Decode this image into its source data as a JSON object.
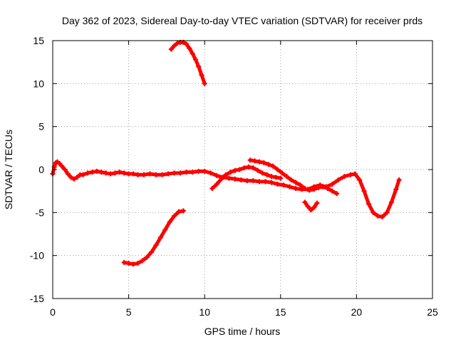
{
  "chart_data": {
    "type": "scatter",
    "title": "Day 362 of 2023, Sidereal Day-to-day VTEC variation (SDTVAR) for receiver prds",
    "xlabel": "GPS time / hours",
    "ylabel": "SDTVAR / TECUs",
    "xlim": [
      0,
      25
    ],
    "ylim": [
      -15,
      15
    ],
    "xticks": [
      0,
      5,
      10,
      15,
      20,
      25
    ],
    "yticks": [
      -15,
      -10,
      -5,
      0,
      5,
      10,
      15
    ],
    "grid": true,
    "marker": "+",
    "color": "#ff0000",
    "series": [
      {
        "name": "main-track",
        "x": [
          0.0,
          0.1,
          0.2,
          0.3,
          0.45,
          0.6,
          0.8,
          1.0,
          1.2,
          1.4,
          1.6,
          1.8,
          2.0,
          2.3,
          2.6,
          2.9,
          3.2,
          3.5,
          3.8,
          4.1,
          4.4,
          4.7,
          5.0,
          5.3,
          5.6,
          6.0,
          6.4,
          6.8,
          7.2,
          7.6,
          8.0,
          8.4,
          8.8,
          9.2,
          9.6,
          10.0,
          10.4,
          10.8,
          11.2,
          11.6,
          12.0,
          12.4,
          12.8,
          13.2,
          13.6,
          14.0,
          14.4,
          14.8,
          15.2,
          15.6,
          16.0,
          16.4,
          16.8,
          17.2,
          17.6,
          18.0,
          18.4,
          18.8,
          19.2,
          19.6,
          19.9,
          20.2,
          20.5,
          20.8,
          21.1,
          21.4,
          21.7,
          22.0,
          22.3,
          22.6,
          22.8
        ],
        "y": [
          -0.5,
          0.3,
          0.8,
          0.9,
          0.7,
          0.4,
          0.0,
          -0.5,
          -0.9,
          -1.1,
          -0.9,
          -0.6,
          -0.6,
          -0.4,
          -0.3,
          -0.2,
          -0.3,
          -0.4,
          -0.5,
          -0.4,
          -0.3,
          -0.4,
          -0.5,
          -0.5,
          -0.6,
          -0.6,
          -0.5,
          -0.6,
          -0.6,
          -0.5,
          -0.4,
          -0.4,
          -0.3,
          -0.3,
          -0.2,
          -0.2,
          -0.4,
          -0.7,
          -0.9,
          -1.0,
          -1.1,
          -1.2,
          -1.3,
          -1.3,
          -1.4,
          -1.4,
          -1.5,
          -1.7,
          -1.8,
          -2.0,
          -2.2,
          -2.3,
          -2.3,
          -2.0,
          -1.8,
          -2.0,
          -1.7,
          -1.2,
          -0.8,
          -0.6,
          -0.5,
          -1.2,
          -2.5,
          -4.0,
          -5.0,
          -5.4,
          -5.5,
          -5.0,
          -3.8,
          -2.3,
          -1.2
        ]
      },
      {
        "name": "upper-arc",
        "x": [
          7.8,
          8.0,
          8.2,
          8.4,
          8.6,
          8.8,
          9.0,
          9.2,
          9.4,
          9.6,
          9.8,
          10.0
        ],
        "y": [
          14.0,
          14.4,
          14.7,
          14.8,
          14.8,
          14.6,
          14.1,
          13.5,
          12.8,
          12.0,
          11.0,
          10.0
        ]
      },
      {
        "name": "lower-arc",
        "x": [
          4.7,
          5.0,
          5.3,
          5.6,
          5.9,
          6.2,
          6.5,
          6.8,
          7.1,
          7.4,
          7.7,
          8.0,
          8.3,
          8.6
        ],
        "y": [
          -10.8,
          -10.9,
          -11.0,
          -10.9,
          -10.6,
          -10.2,
          -9.6,
          -8.8,
          -7.9,
          -7.0,
          -6.1,
          -5.4,
          -4.9,
          -4.8
        ]
      },
      {
        "name": "secondary-track",
        "x": [
          10.5,
          10.8,
          11.1,
          11.4,
          11.7,
          12.0,
          12.3,
          12.6,
          12.9,
          13.2,
          13.5,
          13.8,
          14.1,
          14.4,
          14.7,
          15.0
        ],
        "y": [
          -2.2,
          -1.7,
          -1.1,
          -0.6,
          -0.3,
          -0.1,
          0.0,
          0.2,
          0.3,
          0.2,
          -0.1,
          -0.4,
          -0.6,
          -0.8,
          -0.9,
          -1.0
        ]
      },
      {
        "name": "upper-mid-track",
        "x": [
          13.0,
          13.3,
          13.6,
          13.9,
          14.2,
          14.5,
          14.8,
          15.1,
          15.4,
          15.7,
          16.0,
          16.3,
          16.6,
          16.9,
          17.2,
          17.5,
          17.8,
          18.1,
          18.4,
          18.7
        ],
        "y": [
          1.1,
          1.0,
          0.9,
          0.8,
          0.6,
          0.4,
          0.0,
          -0.4,
          -0.8,
          -1.2,
          -1.5,
          -1.8,
          -2.2,
          -2.4,
          -2.3,
          -2.1,
          -2.0,
          -2.2,
          -2.5,
          -2.8
        ]
      },
      {
        "name": "dip-track",
        "x": [
          16.6,
          16.8,
          17.0,
          17.2,
          17.4
        ],
        "y": [
          -3.8,
          -4.3,
          -4.7,
          -4.4,
          -3.9
        ]
      }
    ]
  }
}
